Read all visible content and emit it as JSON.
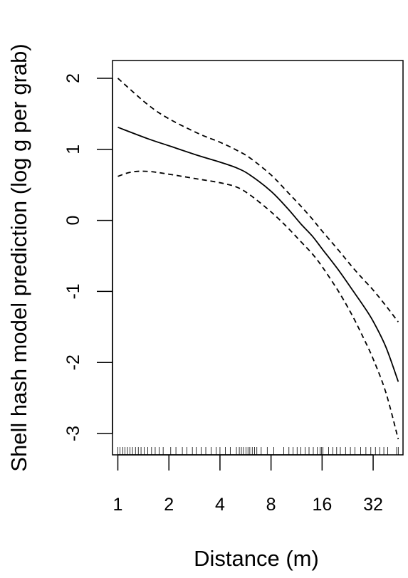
{
  "chart_data": {
    "type": "line",
    "title": "",
    "xlabel": "Distance (m)",
    "ylabel": "Shell hash model prediction (log g per grab)",
    "x_scale": "log2",
    "xlim": [
      0.93,
      48
    ],
    "ylim": [
      -3.3,
      2.25
    ],
    "x_ticks": [
      1,
      2,
      4,
      8,
      16,
      32
    ],
    "x_tick_labels": [
      "1",
      "2",
      "4",
      "8",
      "16",
      "32"
    ],
    "y_ticks": [
      2,
      1,
      0,
      -1,
      -2,
      -3
    ],
    "y_tick_labels": [
      "2",
      "1",
      "0",
      "-1",
      "-2",
      "-3"
    ],
    "grid": false,
    "legend": "none",
    "colors": {
      "line": "#000000",
      "background": "#ffffff"
    },
    "series": [
      {
        "role": "fit",
        "style": "solid",
        "x": [
          1,
          1.5,
          2,
          3,
          4,
          5,
          6,
          8,
          10,
          12,
          14,
          16,
          20,
          24,
          28,
          32,
          38,
          45
        ],
        "y": [
          1.31,
          1.15,
          1.05,
          0.91,
          0.82,
          0.74,
          0.64,
          0.41,
          0.17,
          -0.05,
          -0.22,
          -0.4,
          -0.7,
          -0.97,
          -1.2,
          -1.42,
          -1.78,
          -2.27
        ]
      },
      {
        "role": "upper-ci",
        "style": "dashed",
        "x": [
          1,
          1.5,
          2,
          3,
          4,
          5,
          6,
          8,
          10,
          12,
          14,
          16,
          20,
          24,
          28,
          32,
          38,
          45
        ],
        "y": [
          2.0,
          1.63,
          1.43,
          1.22,
          1.1,
          0.99,
          0.88,
          0.64,
          0.4,
          0.2,
          0.02,
          -0.15,
          -0.42,
          -0.65,
          -0.83,
          -0.98,
          -1.2,
          -1.43
        ]
      },
      {
        "role": "lower-ci",
        "style": "dashed",
        "x": [
          1,
          1.2,
          1.5,
          2,
          3,
          4,
          5,
          6,
          8,
          10,
          12,
          14,
          16,
          20,
          24,
          28,
          32,
          38,
          45
        ],
        "y": [
          0.62,
          0.68,
          0.69,
          0.65,
          0.58,
          0.53,
          0.47,
          0.36,
          0.12,
          -0.1,
          -0.3,
          -0.47,
          -0.65,
          -1.0,
          -1.33,
          -1.65,
          -1.95,
          -2.42,
          -3.08
        ]
      }
    ],
    "rug_x": [
      1,
      1.03,
      1.07,
      1.1,
      1.14,
      1.18,
      1.22,
      1.27,
      1.32,
      1.37,
      1.43,
      1.5,
      1.58,
      1.66,
      1.75,
      1.85,
      2.05,
      2.2,
      2.4,
      2.55,
      2.75,
      2.9,
      3.1,
      3.3,
      3.55,
      3.8,
      4.0,
      4.3,
      4.6,
      5.0,
      5.2,
      5.35,
      5.5,
      5.7,
      5.85,
      6.0,
      6.2,
      6.4,
      6.6,
      7.0,
      7.6,
      8.3,
      9.5,
      10.2,
      10.8,
      11.4,
      12.0,
      12.7,
      13.4,
      14.2,
      15.0,
      15.6,
      15.9,
      16.2,
      17.5,
      18.5,
      19.5,
      20.5,
      22.0,
      23.5,
      25.0,
      27.0,
      29.0,
      31.0,
      33.0,
      35.0,
      37.0,
      39.0,
      44.0,
      45.0
    ]
  }
}
